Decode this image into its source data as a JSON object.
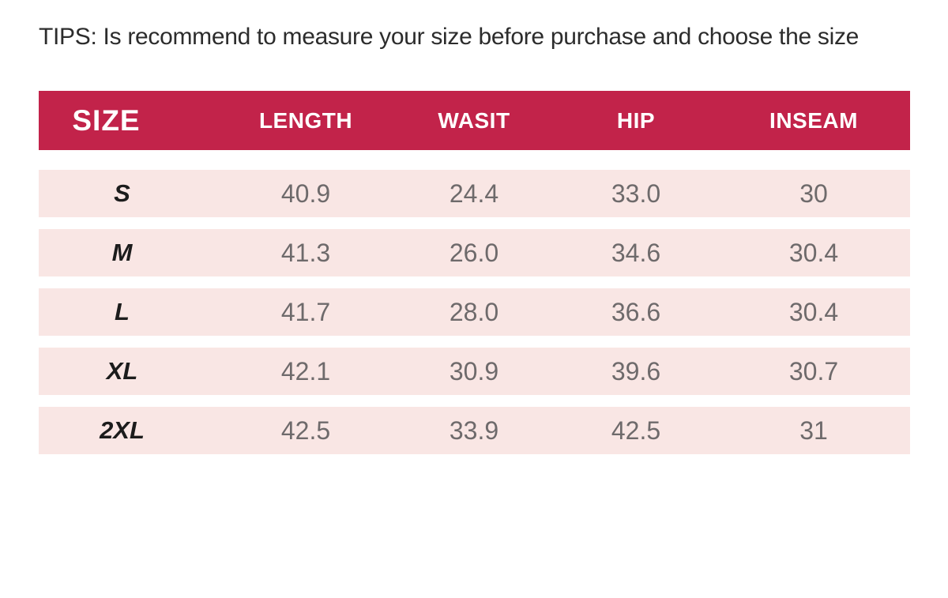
{
  "tips": {
    "text": "TIPS: Is recommend to measure your size before purchase and choose the size"
  },
  "colors": {
    "header_bg": "#c2234a",
    "header_text": "#ffffff",
    "row_bg": "#f9e6e4",
    "value_text": "#6e6a6b",
    "size_text": "#1c1c1c",
    "tips_text": "#2c2c2c",
    "page_bg": "#ffffff"
  },
  "size_table": {
    "columns": [
      "SIZE",
      "LENGTH",
      "WASIT",
      "HIP",
      "INSEAM"
    ],
    "rows": [
      {
        "size": "S",
        "length": "40.9",
        "wasit": "24.4",
        "hip": "33.0",
        "inseam": "30"
      },
      {
        "size": "M",
        "length": "41.3",
        "wasit": "26.0",
        "hip": "34.6",
        "inseam": "30.4"
      },
      {
        "size": "L",
        "length": "41.7",
        "wasit": "28.0",
        "hip": "36.6",
        "inseam": "30.4"
      },
      {
        "size": "XL",
        "length": "42.1",
        "wasit": "30.9",
        "hip": "39.6",
        "inseam": "30.7"
      },
      {
        "size": "2XL",
        "length": "42.5",
        "wasit": "33.9",
        "hip": "42.5",
        "inseam": "31"
      }
    ]
  },
  "chart_data": {
    "type": "table",
    "title": "TIPS: Is recommend to measure your size before purchase and choose the size",
    "columns": [
      "SIZE",
      "LENGTH",
      "WASIT",
      "HIP",
      "INSEAM"
    ],
    "rows": [
      [
        "S",
        40.9,
        24.4,
        33.0,
        30
      ],
      [
        "M",
        41.3,
        26.0,
        34.6,
        30.4
      ],
      [
        "L",
        41.7,
        28.0,
        36.6,
        30.4
      ],
      [
        "XL",
        42.1,
        30.9,
        39.6,
        30.7
      ],
      [
        "2XL",
        42.5,
        33.9,
        42.5,
        31
      ]
    ]
  }
}
